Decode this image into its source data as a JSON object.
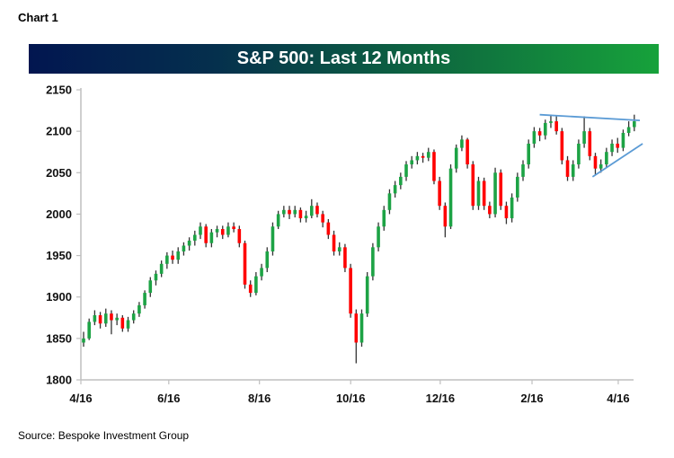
{
  "header": {
    "chart_label": "Chart 1"
  },
  "footer": {
    "source": "Source: Bespoke Investment Group"
  },
  "colors": {
    "up": "#1da345",
    "down": "#ff0000",
    "wick": "#333333",
    "trendline": "#5b9bd5",
    "title_start": "#021650",
    "title_end": "#17a23b"
  },
  "chart_data": {
    "type": "candlestick",
    "title": "S&P 500: Last 12 Months",
    "xlabel": "",
    "ylabel": "",
    "ylim": [
      1800,
      2150
    ],
    "yticks": [
      1800,
      1850,
      1900,
      1950,
      2000,
      2050,
      2100,
      2150
    ],
    "xticks": [
      {
        "label": "4/16",
        "index": 0
      },
      {
        "label": "6/16",
        "index": 15.8
      },
      {
        "label": "8/16",
        "index": 32.1
      },
      {
        "label": "10/16",
        "index": 48.5
      },
      {
        "label": "12/16",
        "index": 64.6
      },
      {
        "label": "2/16",
        "index": 81.1
      },
      {
        "label": "4/16",
        "index": 96.6
      }
    ],
    "grid": false,
    "ohlc": [
      [
        1845,
        1858,
        1840,
        1850
      ],
      [
        1850,
        1874,
        1848,
        1870
      ],
      [
        1870,
        1884,
        1866,
        1878
      ],
      [
        1878,
        1882,
        1862,
        1868
      ],
      [
        1868,
        1886,
        1864,
        1880
      ],
      [
        1880,
        1884,
        1855,
        1872
      ],
      [
        1872,
        1880,
        1866,
        1875
      ],
      [
        1875,
        1878,
        1858,
        1862
      ],
      [
        1862,
        1876,
        1858,
        1872
      ],
      [
        1872,
        1884,
        1868,
        1880
      ],
      [
        1880,
        1894,
        1876,
        1890
      ],
      [
        1890,
        1908,
        1886,
        1905
      ],
      [
        1905,
        1924,
        1900,
        1920
      ],
      [
        1920,
        1932,
        1914,
        1928
      ],
      [
        1928,
        1944,
        1924,
        1940
      ],
      [
        1940,
        1954,
        1934,
        1950
      ],
      [
        1950,
        1956,
        1940,
        1945
      ],
      [
        1945,
        1960,
        1940,
        1955
      ],
      [
        1955,
        1966,
        1950,
        1962
      ],
      [
        1962,
        1972,
        1956,
        1968
      ],
      [
        1968,
        1980,
        1962,
        1975
      ],
      [
        1975,
        1990,
        1970,
        1985
      ],
      [
        1985,
        1988,
        1960,
        1965
      ],
      [
        1965,
        1982,
        1960,
        1978
      ],
      [
        1978,
        1986,
        1972,
        1982
      ],
      [
        1982,
        1986,
        1970,
        1975
      ],
      [
        1975,
        1990,
        1972,
        1985
      ],
      [
        1985,
        1990,
        1978,
        1982
      ],
      [
        1982,
        1986,
        1960,
        1965
      ],
      [
        1965,
        1968,
        1910,
        1915
      ],
      [
        1915,
        1920,
        1900,
        1905
      ],
      [
        1905,
        1930,
        1902,
        1925
      ],
      [
        1925,
        1940,
        1920,
        1935
      ],
      [
        1935,
        1960,
        1930,
        1955
      ],
      [
        1955,
        1990,
        1950,
        1985
      ],
      [
        1985,
        2004,
        1982,
        2000
      ],
      [
        2000,
        2010,
        1996,
        2005
      ],
      [
        2005,
        2010,
        1994,
        2000
      ],
      [
        2000,
        2010,
        1996,
        2005
      ],
      [
        2005,
        2008,
        1990,
        1995
      ],
      [
        1995,
        2004,
        1990,
        1998
      ],
      [
        1998,
        2018,
        1995,
        2010
      ],
      [
        2010,
        2014,
        1996,
        2000
      ],
      [
        2000,
        2004,
        1984,
        1990
      ],
      [
        1990,
        1994,
        1970,
        1975
      ],
      [
        1975,
        1980,
        1950,
        1955
      ],
      [
        1955,
        1966,
        1950,
        1960
      ],
      [
        1960,
        1964,
        1930,
        1935
      ],
      [
        1935,
        1940,
        1875,
        1880
      ],
      [
        1880,
        1885,
        1820,
        1845
      ],
      [
        1845,
        1885,
        1840,
        1880
      ],
      [
        1880,
        1930,
        1876,
        1925
      ],
      [
        1925,
        1965,
        1920,
        1960
      ],
      [
        1960,
        1990,
        1955,
        1985
      ],
      [
        1985,
        2010,
        1980,
        2005
      ],
      [
        2005,
        2030,
        2000,
        2025
      ],
      [
        2025,
        2040,
        2020,
        2035
      ],
      [
        2035,
        2050,
        2030,
        2045
      ],
      [
        2045,
        2064,
        2040,
        2060
      ],
      [
        2060,
        2070,
        2055,
        2065
      ],
      [
        2065,
        2075,
        2060,
        2070
      ],
      [
        2070,
        2074,
        2062,
        2068
      ],
      [
        2068,
        2080,
        2064,
        2075
      ],
      [
        2075,
        2078,
        2036,
        2040
      ],
      [
        2040,
        2045,
        2005,
        2010
      ],
      [
        2010,
        2014,
        1972,
        1985
      ],
      [
        1985,
        2060,
        1982,
        2055
      ],
      [
        2055,
        2084,
        2050,
        2080
      ],
      [
        2080,
        2095,
        2076,
        2090
      ],
      [
        2090,
        2092,
        2055,
        2060
      ],
      [
        2060,
        2064,
        2005,
        2010
      ],
      [
        2010,
        2045,
        2005,
        2040
      ],
      [
        2040,
        2044,
        2005,
        2010
      ],
      [
        2010,
        2015,
        1995,
        2000
      ],
      [
        2000,
        2056,
        1996,
        2050
      ],
      [
        2050,
        2054,
        2005,
        2010
      ],
      [
        2010,
        2015,
        1988,
        1995
      ],
      [
        1995,
        2025,
        1990,
        2020
      ],
      [
        2020,
        2050,
        2015,
        2045
      ],
      [
        2045,
        2065,
        2040,
        2060
      ],
      [
        2060,
        2090,
        2055,
        2085
      ],
      [
        2085,
        2105,
        2080,
        2100
      ],
      [
        2100,
        2104,
        2088,
        2095
      ],
      [
        2095,
        2114,
        2090,
        2110
      ],
      [
        2110,
        2120,
        2104,
        2112
      ],
      [
        2112,
        2118,
        2096,
        2100
      ],
      [
        2100,
        2104,
        2060,
        2065
      ],
      [
        2065,
        2070,
        2040,
        2045
      ],
      [
        2045,
        2065,
        2040,
        2060
      ],
      [
        2060,
        2090,
        2055,
        2085
      ],
      [
        2085,
        2118,
        2080,
        2100
      ],
      [
        2100,
        2104,
        2065,
        2070
      ],
      [
        2070,
        2074,
        2048,
        2055
      ],
      [
        2055,
        2066,
        2050,
        2060
      ],
      [
        2060,
        2080,
        2056,
        2075
      ],
      [
        2075,
        2090,
        2070,
        2085
      ],
      [
        2085,
        2092,
        2074,
        2080
      ],
      [
        2080,
        2102,
        2076,
        2098
      ],
      [
        2098,
        2112,
        2094,
        2105
      ],
      [
        2105,
        2120,
        2100,
        2112
      ]
    ],
    "annotations": [
      {
        "type": "trendline",
        "from": {
          "index": 82,
          "value": 2120
        },
        "to": {
          "index": 100,
          "value": 2113
        }
      },
      {
        "type": "trendline",
        "from": {
          "index": 91.5,
          "value": 2045
        },
        "to": {
          "index": 100.5,
          "value": 2085
        }
      }
    ]
  }
}
